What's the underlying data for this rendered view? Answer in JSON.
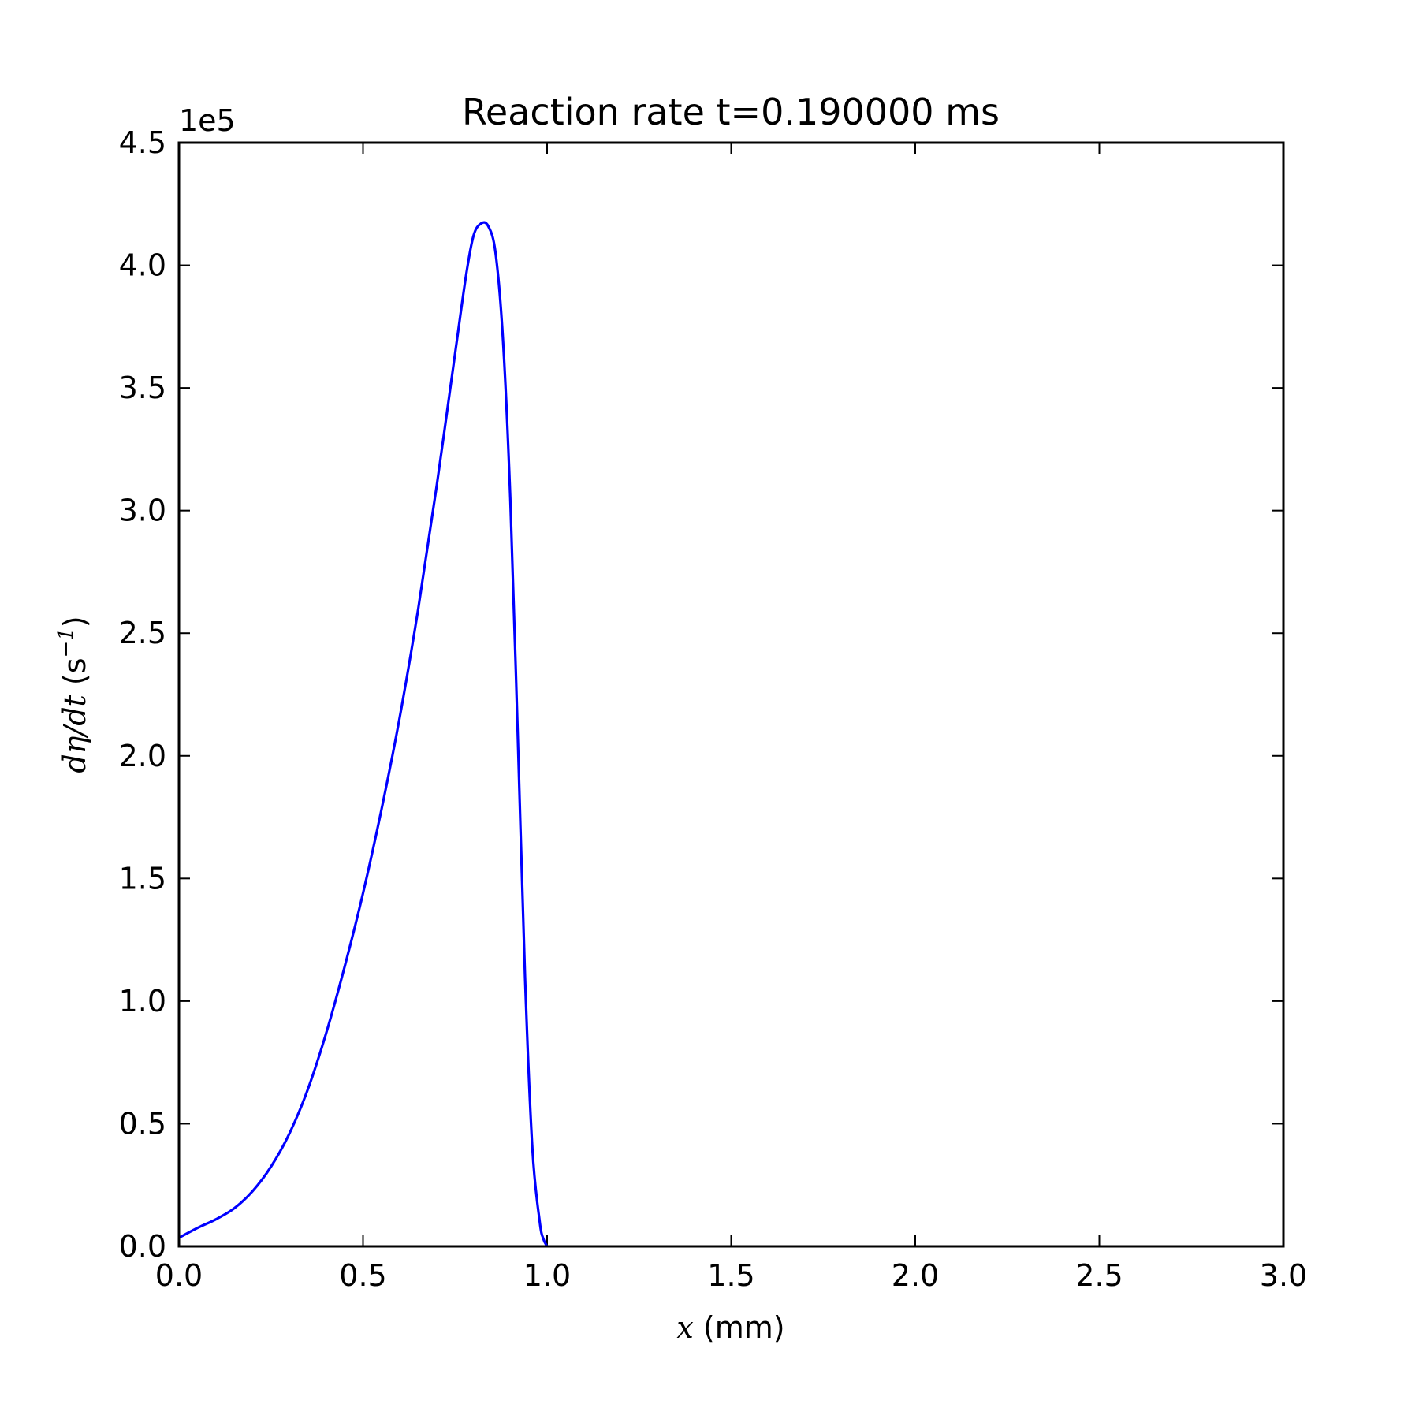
{
  "chart_data": {
    "type": "line",
    "title": "Reaction rate t=0.190000 ms",
    "xlabel_math": "x",
    "xlabel_text": " (mm)",
    "ylabel_math": "dη/dt",
    "ylabel_text": " (s",
    "ylabel_sup": "−1",
    "ylabel_close": ")",
    "y_offset_label": "1e5",
    "xlim": [
      0.0,
      3.0
    ],
    "ylim": [
      0.0,
      4.5
    ],
    "x_ticks": [
      "0.0",
      "0.5",
      "1.0",
      "1.5",
      "2.0",
      "2.5",
      "3.0"
    ],
    "y_ticks": [
      "0.0",
      "0.5",
      "1.0",
      "1.5",
      "2.0",
      "2.5",
      "3.0",
      "3.5",
      "4.0",
      "4.5"
    ],
    "grid": false,
    "series": [
      {
        "color": "#0000ff",
        "x": [
          0.0,
          0.05,
          0.1,
          0.15,
          0.2,
          0.25,
          0.3,
          0.35,
          0.4,
          0.45,
          0.5,
          0.55,
          0.6,
          0.65,
          0.7,
          0.75,
          0.78,
          0.8,
          0.82,
          0.84,
          0.86,
          0.88,
          0.9,
          0.92,
          0.94,
          0.96,
          0.98,
          0.99,
          1.0
        ],
        "y": [
          0.035,
          0.075,
          0.11,
          0.155,
          0.225,
          0.325,
          0.46,
          0.64,
          0.87,
          1.14,
          1.44,
          1.78,
          2.16,
          2.6,
          3.1,
          3.64,
          3.96,
          4.12,
          4.17,
          4.16,
          4.05,
          3.7,
          3.05,
          2.1,
          1.1,
          0.4,
          0.1,
          0.03,
          0.0
        ]
      }
    ]
  }
}
